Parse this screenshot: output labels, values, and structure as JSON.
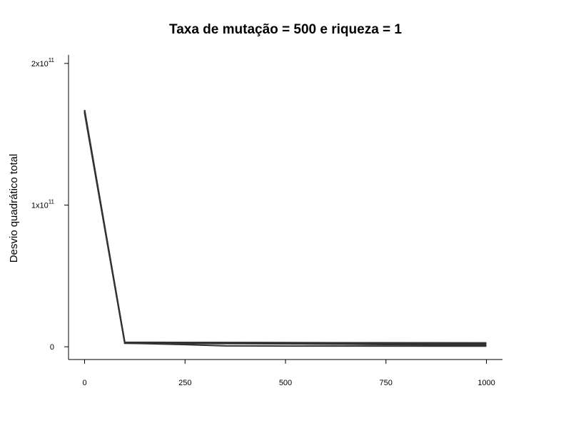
{
  "chart_data": {
    "type": "line",
    "title": "Taxa de mutação = 500 e riqueza = 1",
    "ylabel": "Desvio quadrático total",
    "xlabel": "",
    "xlim": [
      -40,
      1040
    ],
    "ylim": [
      -9000000000,
      206000000000
    ],
    "x_ticks": [
      {
        "value": 0,
        "label": "0"
      },
      {
        "value": 250,
        "label": "250"
      },
      {
        "value": 500,
        "label": "500"
      },
      {
        "value": 750,
        "label": "750"
      },
      {
        "value": 1000,
        "label": "1000"
      }
    ],
    "y_ticks": [
      {
        "value": 0,
        "base": "0",
        "exp": ""
      },
      {
        "value": 100000000000,
        "base": "1x10",
        "exp": "11"
      },
      {
        "value": 200000000000,
        "base": "2x10",
        "exp": "11"
      }
    ],
    "line_color": "#333333",
    "series": [
      {
        "x": [
          0,
          100,
          1000
        ],
        "y": [
          167000000000,
          3000000000,
          2800000000
        ]
      },
      {
        "x": [
          0,
          100,
          1000
        ],
        "y": [
          166000000000,
          3200000000,
          2600000000
        ]
      },
      {
        "x": [
          0,
          100,
          1000
        ],
        "y": [
          165500000000,
          2700000000,
          2300000000
        ]
      },
      {
        "x": [
          0,
          100,
          1000
        ],
        "y": [
          166500000000,
          2900000000,
          2000000000
        ]
      },
      {
        "x": [
          0,
          100,
          1000
        ],
        "y": [
          165000000000,
          2500000000,
          1500000000
        ]
      },
      {
        "x": [
          0,
          100,
          1000
        ],
        "y": [
          167200000000,
          3100000000,
          1000000000
        ]
      },
      {
        "x": [
          0,
          100,
          250,
          350,
          500,
          1000
        ],
        "y": [
          166200000000,
          2600000000,
          1500000000,
          600000000,
          500000000,
          400000000
        ]
      }
    ]
  }
}
